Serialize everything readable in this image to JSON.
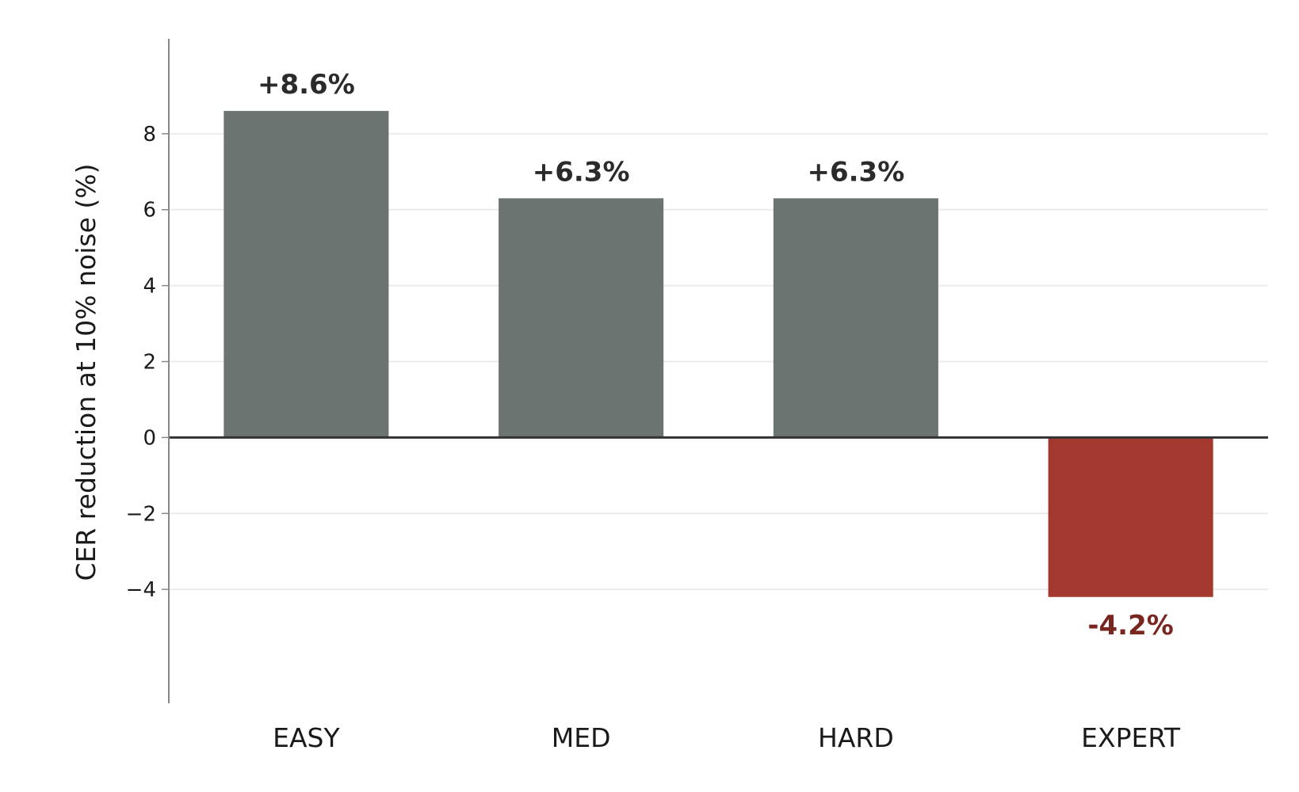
{
  "chart_data": {
    "type": "bar",
    "title": "",
    "xlabel": "",
    "ylabel": "CER reduction at 10% noise (%)",
    "categories": [
      "EASY",
      "MED",
      "HARD",
      "EXPERT"
    ],
    "values": [
      8.6,
      6.3,
      6.3,
      -4.2
    ],
    "data_labels": [
      "+8.6%",
      "+6.3%",
      "+6.3%",
      "-4.2%"
    ],
    "yticks": [
      -4,
      -2,
      0,
      2,
      4,
      6,
      8
    ],
    "ytick_labels": [
      "−4",
      "−2",
      "0",
      "2",
      "4",
      "6",
      "8"
    ],
    "ylim": [
      -7.0,
      10.5
    ],
    "grid": "horizontal",
    "legend": "none",
    "colors": {
      "positive_bar": "#6c7472",
      "negative_bar": "#a3392e",
      "positive_label": "#2b2b2b",
      "negative_label": "#7a2620",
      "zero_line": "#333333",
      "grid": "#ebebeb",
      "axis": "#888888"
    }
  }
}
